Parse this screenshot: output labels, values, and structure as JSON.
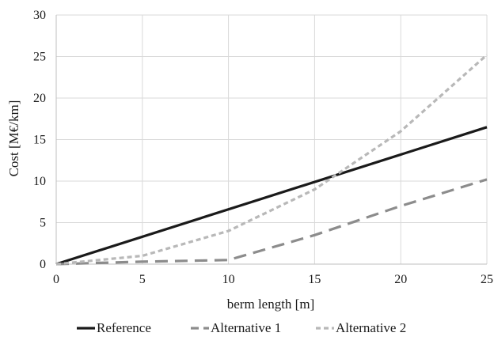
{
  "chart_data": {
    "type": "line",
    "title": "",
    "xlabel": "berm length [m]",
    "ylabel": "Cost  [M€/km]",
    "xlim": [
      0,
      25
    ],
    "ylim": [
      0,
      30
    ],
    "x_ticks": [
      "0",
      "5",
      "10",
      "15",
      "20",
      "25"
    ],
    "y_ticks": [
      "0",
      "5",
      "10",
      "15",
      "20",
      "25",
      "30"
    ],
    "grid": true,
    "legend_position": "bottom",
    "series": [
      {
        "name": "Reference",
        "color": "#1a1a1a",
        "style": "solid",
        "x": [
          0,
          25
        ],
        "y": [
          0,
          16.5
        ]
      },
      {
        "name": "Alternative 1",
        "color": "#8c8c8c",
        "style": "long-dash",
        "x": [
          0,
          5,
          10,
          15,
          20,
          25
        ],
        "y": [
          0,
          0.3,
          0.5,
          3.5,
          7,
          10.2
        ]
      },
      {
        "name": "Alternative 2",
        "color": "#b8b8b8",
        "style": "short-dash",
        "x": [
          0,
          5,
          10,
          15,
          20,
          25
        ],
        "y": [
          0,
          1,
          4,
          9,
          16,
          25.2
        ]
      }
    ]
  }
}
